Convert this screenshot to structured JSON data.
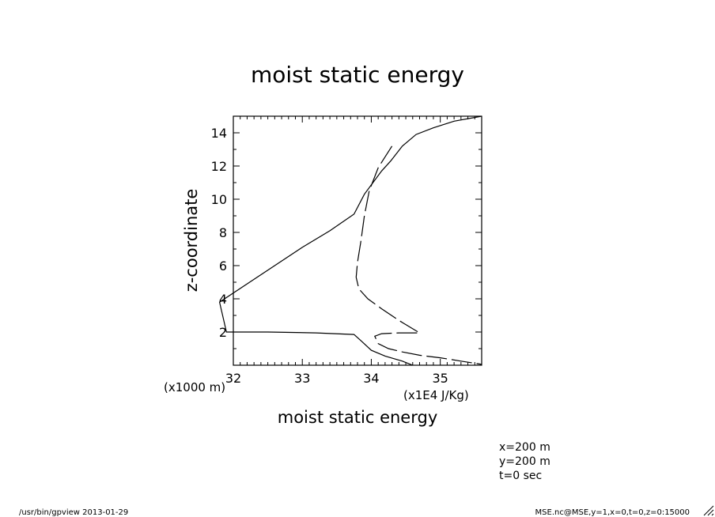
{
  "chart_data": {
    "type": "line",
    "title": "moist static energy",
    "xlabel": "moist static energy",
    "ylabel": "z-coordinate",
    "x_unit": "(x1E4 J/Kg)",
    "y_unit": "(x1000 m)",
    "xlim": [
      32,
      35.6
    ],
    "ylim": [
      0,
      15
    ],
    "x_ticks": [
      32,
      33,
      34,
      35
    ],
    "x_tick_labels": [
      "32",
      "33",
      "34",
      "35"
    ],
    "y_ticks": [
      2,
      4,
      6,
      8,
      10,
      12,
      14
    ],
    "y_tick_labels": [
      "2",
      "4",
      "6",
      "8",
      "10",
      "12",
      "14"
    ],
    "grid": false,
    "series": [
      {
        "style": "solid",
        "x": [
          35.6,
          35.2,
          34.9,
          34.65,
          34.45,
          34.28,
          34.15,
          33.9,
          33.75,
          33.4,
          33.0,
          32.6,
          32.2,
          31.8,
          31.9,
          32.5,
          33.2,
          33.75,
          33.87,
          34.0,
          34.2,
          34.45,
          34.6
        ],
        "y": [
          15,
          14.7,
          14.3,
          13.9,
          13.2,
          12.3,
          11.7,
          10.3,
          9.1,
          8.1,
          7.1,
          6.0,
          4.9,
          3.8,
          2.0,
          2.0,
          1.95,
          1.85,
          1.4,
          0.9,
          0.55,
          0.25,
          0
        ]
      },
      {
        "style": "dashed",
        "x": [
          34.3,
          34.1,
          33.97,
          33.9,
          33.85,
          33.8,
          33.78,
          33.82,
          33.95,
          34.15,
          34.4,
          34.7,
          34.4,
          34.15,
          34.05,
          34.1,
          34.25,
          34.45,
          34.7,
          35.0,
          35.3,
          35.6
        ],
        "y": [
          13.2,
          11.9,
          10.5,
          9.0,
          7.5,
          6.2,
          5.3,
          4.6,
          4.0,
          3.4,
          2.7,
          1.95,
          1.95,
          1.9,
          1.75,
          1.3,
          1.0,
          0.8,
          0.6,
          0.45,
          0.25,
          0.05
        ]
      }
    ]
  },
  "annotations": {
    "xinfo": "x=200 m",
    "yinfo": "y=200 m",
    "tinfo": "t=0 sec",
    "footer_left": "/usr/bin/gpview  2013-01-29",
    "footer_right": "MSE.nc@MSE,y=1,x=0,t=0,z=0:15000"
  }
}
